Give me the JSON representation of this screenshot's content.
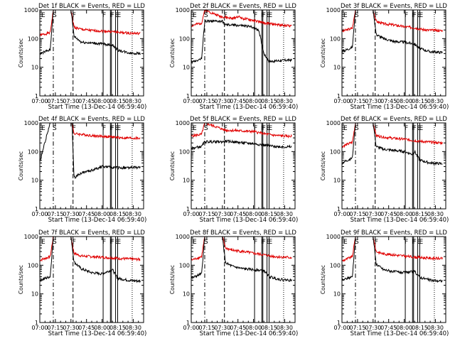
{
  "figure": {
    "panel_titles": [
      "Det 1f BLACK = Events, RED = LLD",
      "Det 2f BLACK = Events, RED = LLD",
      "Det 3f BLACK = Events, RED = LLD",
      "Det 4f BLACK = Events, RED = LLD",
      "Det 5f BLACK = Events, RED = LLD",
      "Det 6f BLACK = Events, RED = LLD",
      "Det 7f BLACK = Events, RED = LLD",
      "Det 8f BLACK = Events, RED = LLD",
      "Det 9f BLACK = Events, RED = LLD"
    ],
    "xlabel": "Start Time (13-Dec-14 06:59:40)",
    "ylabel": "Counts/sec"
  },
  "chart_data": {
    "type": "line",
    "series_colors": {
      "events": "#000000",
      "lld": "#e00000"
    },
    "xlim": [
      "07:00",
      "08:40"
    ],
    "xlim_minutes": [
      0,
      100
    ],
    "ylim": [
      1,
      1000
    ],
    "ylog": true,
    "x_ticks": [
      "07:00",
      "07:15",
      "07:30",
      "07:45",
      "08:00",
      "08:15",
      "08:30"
    ],
    "y_ticks": [
      "1",
      "10",
      "100",
      "1000"
    ],
    "markers": [
      {
        "label": "E",
        "t": 0,
        "style": "dashdot"
      },
      {
        "label": "S",
        "t": 13,
        "style": "dashdot"
      },
      {
        "label": "F",
        "t": 32,
        "style": "dash"
      },
      {
        "label": "F",
        "t": 61,
        "style": "solid"
      },
      {
        "label": "F",
        "t": 68,
        "style": "solid"
      },
      {
        "label": "F",
        "t": 69,
        "style": "solid"
      },
      {
        "label": "E",
        "t": 73,
        "style": "solid"
      },
      {
        "label": "E",
        "t": 75,
        "style": "solid"
      },
      {
        "label": "",
        "t": 89,
        "style": "dotted"
      }
    ],
    "panels": [
      {
        "name": "Det 1f",
        "events": [
          [
            0,
            30
          ],
          [
            10,
            40
          ],
          [
            13,
            1000
          ],
          [
            30,
            1000
          ],
          [
            33,
            120
          ],
          [
            40,
            75
          ],
          [
            50,
            70
          ],
          [
            60,
            65
          ],
          [
            70,
            60
          ],
          [
            75,
            40
          ],
          [
            85,
            32
          ],
          [
            95,
            30
          ]
        ],
        "lld": [
          [
            0,
            130
          ],
          [
            10,
            160
          ],
          [
            13,
            1000
          ],
          [
            30,
            1000
          ],
          [
            33,
            250
          ],
          [
            40,
            210
          ],
          [
            50,
            190
          ],
          [
            60,
            185
          ],
          [
            70,
            175
          ],
          [
            80,
            160
          ],
          [
            95,
            150
          ]
        ]
      },
      {
        "name": "Det 2f",
        "events": [
          [
            0,
            15
          ],
          [
            10,
            20
          ],
          [
            13,
            400
          ],
          [
            30,
            400
          ],
          [
            33,
            300
          ],
          [
            40,
            300
          ],
          [
            50,
            280
          ],
          [
            60,
            250
          ],
          [
            65,
            200
          ],
          [
            70,
            30
          ],
          [
            75,
            16
          ],
          [
            85,
            17
          ],
          [
            95,
            18
          ]
        ],
        "lld": [
          [
            0,
            280
          ],
          [
            10,
            350
          ],
          [
            13,
            1000
          ],
          [
            28,
            600
          ],
          [
            33,
            550
          ],
          [
            40,
            500
          ],
          [
            45,
            600
          ],
          [
            50,
            500
          ],
          [
            60,
            430
          ],
          [
            70,
            350
          ],
          [
            85,
            300
          ],
          [
            95,
            280
          ]
        ]
      },
      {
        "name": "Det 3f",
        "events": [
          [
            0,
            35
          ],
          [
            10,
            50
          ],
          [
            13,
            1000
          ],
          [
            30,
            1000
          ],
          [
            33,
            140
          ],
          [
            40,
            100
          ],
          [
            50,
            80
          ],
          [
            60,
            75
          ],
          [
            70,
            65
          ],
          [
            75,
            45
          ],
          [
            85,
            35
          ],
          [
            95,
            33
          ]
        ],
        "lld": [
          [
            0,
            180
          ],
          [
            10,
            230
          ],
          [
            13,
            1000
          ],
          [
            30,
            1000
          ],
          [
            33,
            400
          ],
          [
            40,
            330
          ],
          [
            50,
            300
          ],
          [
            60,
            260
          ],
          [
            70,
            240
          ],
          [
            80,
            200
          ],
          [
            95,
            190
          ]
        ]
      },
      {
        "name": "Det 4f",
        "events": [
          [
            0,
            45
          ],
          [
            10,
            1000
          ],
          [
            31,
            1000
          ],
          [
            33,
            12
          ],
          [
            40,
            18
          ],
          [
            50,
            22
          ],
          [
            60,
            30
          ],
          [
            70,
            28
          ],
          [
            80,
            27
          ],
          [
            95,
            28
          ]
        ],
        "lld": [
          [
            0,
            1000
          ],
          [
            31,
            1000
          ],
          [
            33,
            420
          ],
          [
            40,
            400
          ],
          [
            50,
            360
          ],
          [
            60,
            340
          ],
          [
            70,
            320
          ],
          [
            80,
            300
          ],
          [
            95,
            290
          ]
        ]
      },
      {
        "name": "Det 5f",
        "events": [
          [
            0,
            130
          ],
          [
            10,
            150
          ],
          [
            13,
            220
          ],
          [
            31,
            220
          ],
          [
            33,
            230
          ],
          [
            40,
            220
          ],
          [
            50,
            200
          ],
          [
            60,
            190
          ],
          [
            70,
            170
          ],
          [
            80,
            150
          ],
          [
            95,
            145
          ]
        ],
        "lld": [
          [
            0,
            350
          ],
          [
            10,
            400
          ],
          [
            13,
            1000
          ],
          [
            28,
            650
          ],
          [
            33,
            550
          ],
          [
            40,
            550
          ],
          [
            50,
            520
          ],
          [
            60,
            500
          ],
          [
            70,
            420
          ],
          [
            80,
            370
          ],
          [
            95,
            340
          ]
        ]
      },
      {
        "name": "Det 6f",
        "events": [
          [
            0,
            40
          ],
          [
            10,
            60
          ],
          [
            13,
            1000
          ],
          [
            30,
            1000
          ],
          [
            33,
            150
          ],
          [
            40,
            120
          ],
          [
            50,
            110
          ],
          [
            60,
            100
          ],
          [
            68,
            80
          ],
          [
            70,
            100
          ],
          [
            75,
            50
          ],
          [
            85,
            40
          ],
          [
            95,
            38
          ]
        ],
        "lld": [
          [
            0,
            150
          ],
          [
            10,
            210
          ],
          [
            13,
            1000
          ],
          [
            30,
            1000
          ],
          [
            33,
            360
          ],
          [
            40,
            320
          ],
          [
            50,
            290
          ],
          [
            60,
            270
          ],
          [
            70,
            240
          ],
          [
            80,
            220
          ],
          [
            95,
            200
          ]
        ]
      },
      {
        "name": "Det 7f",
        "events": [
          [
            0,
            30
          ],
          [
            10,
            40
          ],
          [
            13,
            1000
          ],
          [
            30,
            1000
          ],
          [
            33,
            130
          ],
          [
            40,
            75
          ],
          [
            50,
            55
          ],
          [
            60,
            50
          ],
          [
            65,
            60
          ],
          [
            70,
            70
          ],
          [
            75,
            35
          ],
          [
            85,
            30
          ],
          [
            95,
            28
          ]
        ],
        "lld": [
          [
            0,
            150
          ],
          [
            10,
            200
          ],
          [
            13,
            1000
          ],
          [
            30,
            1000
          ],
          [
            33,
            260
          ],
          [
            40,
            210
          ],
          [
            50,
            200
          ],
          [
            60,
            190
          ],
          [
            70,
            180
          ],
          [
            80,
            170
          ],
          [
            95,
            160
          ]
        ]
      },
      {
        "name": "Det 8f",
        "events": [
          [
            0,
            35
          ],
          [
            10,
            50
          ],
          [
            13,
            1000
          ],
          [
            30,
            1000
          ],
          [
            33,
            120
          ],
          [
            40,
            90
          ],
          [
            50,
            75
          ],
          [
            60,
            70
          ],
          [
            70,
            65
          ],
          [
            75,
            40
          ],
          [
            85,
            32
          ],
          [
            95,
            30
          ]
        ],
        "lld": [
          [
            0,
            150
          ],
          [
            10,
            200
          ],
          [
            13,
            1000
          ],
          [
            30,
            1000
          ],
          [
            33,
            400
          ],
          [
            40,
            330
          ],
          [
            50,
            300
          ],
          [
            60,
            260
          ],
          [
            70,
            230
          ],
          [
            80,
            200
          ],
          [
            95,
            185
          ]
        ]
      },
      {
        "name": "Det 9f",
        "events": [
          [
            0,
            30
          ],
          [
            10,
            40
          ],
          [
            13,
            1000
          ],
          [
            30,
            1000
          ],
          [
            33,
            110
          ],
          [
            40,
            70
          ],
          [
            50,
            60
          ],
          [
            60,
            55
          ],
          [
            70,
            60
          ],
          [
            75,
            38
          ],
          [
            85,
            30
          ],
          [
            95,
            28
          ]
        ],
        "lld": [
          [
            0,
            140
          ],
          [
            10,
            200
          ],
          [
            13,
            1000
          ],
          [
            30,
            1000
          ],
          [
            33,
            300
          ],
          [
            40,
            250
          ],
          [
            50,
            230
          ],
          [
            60,
            210
          ],
          [
            70,
            190
          ],
          [
            80,
            180
          ],
          [
            95,
            170
          ]
        ]
      }
    ]
  }
}
